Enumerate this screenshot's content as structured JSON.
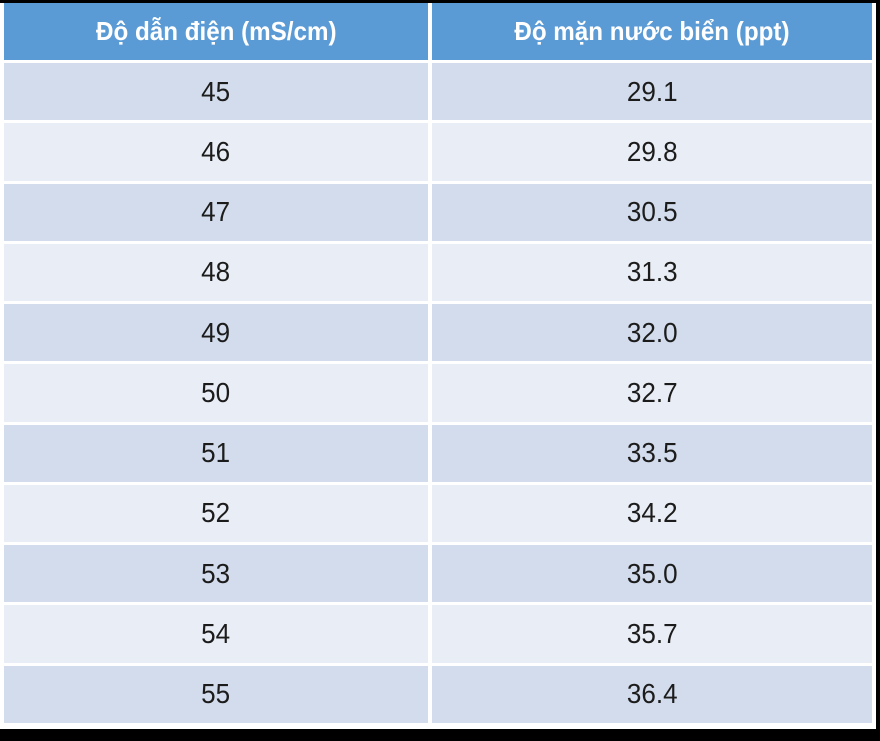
{
  "table": {
    "headers": [
      "Độ dẫn điện (mS/cm)",
      "Độ mặn nước biển (ppt)"
    ],
    "rows": [
      [
        "45",
        "29.1"
      ],
      [
        "46",
        "29.8"
      ],
      [
        "47",
        "30.5"
      ],
      [
        "48",
        "31.3"
      ],
      [
        "49",
        "32.0"
      ],
      [
        "50",
        "32.7"
      ],
      [
        "51",
        "33.5"
      ],
      [
        "52",
        "34.2"
      ],
      [
        "53",
        "35.0"
      ],
      [
        "54",
        "35.7"
      ],
      [
        "55",
        "36.4"
      ]
    ]
  },
  "colors": {
    "header_bg": "#5B9BD5",
    "header_text": "#FFFFFF",
    "row_band_dark": "#D2DCEC",
    "row_band_light": "#E9EDF5",
    "cell_text": "#1C1C1C",
    "separator": "#FFFFFF",
    "frame_edge": "#000000"
  },
  "chart_data": {
    "type": "table",
    "columns": [
      "Độ dẫn điện (mS/cm)",
      "Độ mặn nước biển (ppt)"
    ],
    "conductivity_mS_cm": [
      45,
      46,
      47,
      48,
      49,
      50,
      51,
      52,
      53,
      54,
      55
    ],
    "salinity_ppt": [
      29.1,
      29.8,
      30.5,
      31.3,
      32.0,
      32.7,
      33.5,
      34.2,
      35.0,
      35.7,
      36.4
    ]
  }
}
